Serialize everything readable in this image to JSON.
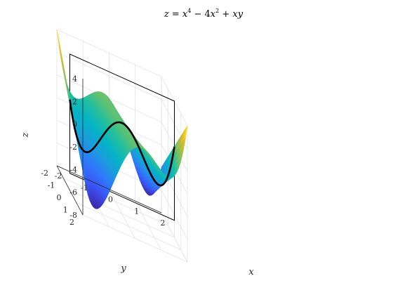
{
  "chart_data": {
    "type": "surface",
    "title": "z = x^4 − 4x^2 + xy",
    "title_parts": {
      "z": "z",
      "eq": " = ",
      "x1": "x",
      "sup4": "4",
      "minus": " − 4",
      "x2": "x",
      "sup2": "2",
      "plus": " + ",
      "x3": "x",
      "y": "y"
    },
    "function": "z = x^4 - 4x^2 + x*y",
    "xlabel": "x",
    "ylabel": "y",
    "zlabel": "z",
    "xlim": [
      -2,
      2
    ],
    "ylim": [
      -2,
      2
    ],
    "zlim": [
      -8,
      4
    ],
    "xticks": [
      -2,
      -1,
      0,
      1,
      2
    ],
    "yticks": [
      -2,
      -1,
      0,
      1,
      2
    ],
    "zticks": [
      -8,
      -6,
      -4,
      -2,
      0,
      2,
      4
    ],
    "xtick_labels": [
      "-2",
      "-1",
      "0",
      "1",
      "2"
    ],
    "ytick_labels": [
      "-2",
      "-1",
      "0",
      "1",
      "2"
    ],
    "ztick_labels": [
      "-8",
      "-6",
      "-4",
      "-2",
      "0",
      "2",
      "4"
    ],
    "colormap": [
      "#3e26a8",
      "#3b53f3",
      "#2f79fc",
      "#1c9ddc",
      "#04b4c6",
      "#26bf9c",
      "#76c264",
      "#bbbb3c",
      "#f5c12a",
      "#f9fb15"
    ],
    "slice_plane": {
      "y": 0,
      "x_range": [
        -2,
        2
      ],
      "z_range": [
        -6.5,
        4
      ],
      "color": "#000000"
    },
    "slice_curve": {
      "y": 0,
      "function": "z = x^4 - 4x^2",
      "color": "#000000"
    },
    "view": {
      "azimuth_deg": -37.5,
      "elevation_deg": 30
    },
    "grid": true,
    "box": false
  }
}
